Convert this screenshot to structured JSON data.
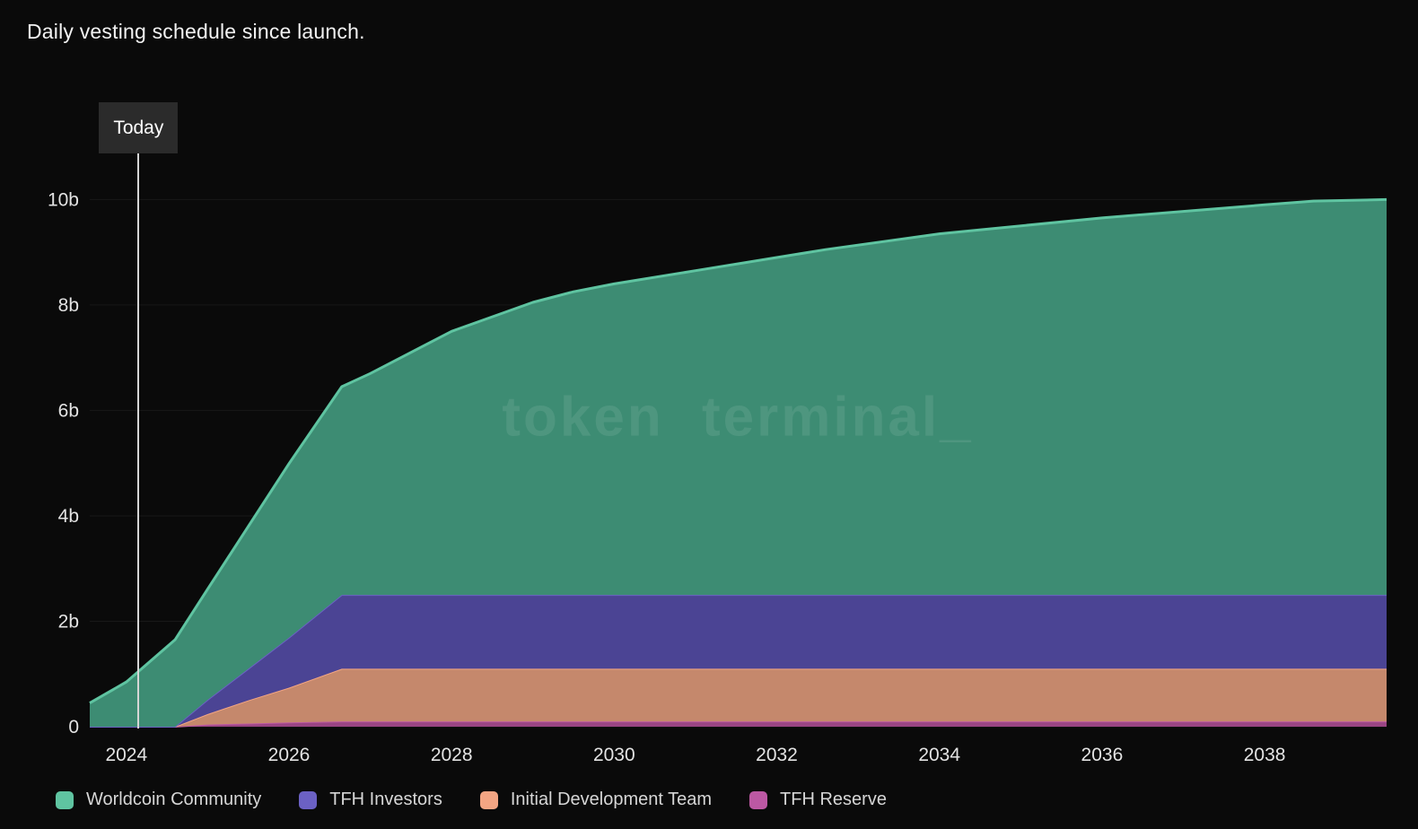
{
  "page": {
    "title": "Daily vesting schedule since launch."
  },
  "chart_data": {
    "type": "area",
    "stacked": true,
    "title": "Daily vesting schedule since launch.",
    "watermark": "token terminal_",
    "xlabel": "",
    "ylabel": "",
    "grid": "horizontal-faint",
    "legend_position": "bottom",
    "xlim": [
      2023.55,
      2039.5
    ],
    "ylim": [
      0,
      10.5
    ],
    "x_ticks": [
      2024,
      2026,
      2028,
      2030,
      2032,
      2034,
      2036,
      2038
    ],
    "y_ticks": [
      {
        "label": "0",
        "value": 0
      },
      {
        "label": "2b",
        "value": 2
      },
      {
        "label": "4b",
        "value": 4
      },
      {
        "label": "6b",
        "value": 6
      },
      {
        "label": "8b",
        "value": 8
      },
      {
        "label": "10b",
        "value": 10
      }
    ],
    "today": {
      "label": "Today",
      "x": 2024.15
    },
    "x": [
      2023.55,
      2024,
      2024.6,
      2025,
      2025.5,
      2026,
      2026.65,
      2027,
      2028,
      2029,
      2029.5,
      2030,
      2031,
      2032,
      2032.6,
      2034,
      2036,
      2038,
      2038.6,
      2039.5
    ],
    "series": [
      {
        "name": "TFH Reserve",
        "color": "#bc58a3",
        "fill": "#9a4583",
        "values": [
          0,
          0,
          0,
          0.04,
          0.06,
          0.08,
          0.1,
          0.1,
          0.1,
          0.1,
          0.1,
          0.1,
          0.1,
          0.1,
          0.1,
          0.1,
          0.1,
          0.1,
          0.1,
          0.1
        ]
      },
      {
        "name": "Initial Development Team",
        "color": "#f3a583",
        "fill": "#c5886c",
        "values": [
          0,
          0,
          0,
          0.2,
          0.44,
          0.66,
          1.0,
          1.0,
          1.0,
          1.0,
          1.0,
          1.0,
          1.0,
          1.0,
          1.0,
          1.0,
          1.0,
          1.0,
          1.0,
          1.0
        ]
      },
      {
        "name": "TFH Investors",
        "color": "#6b61c4",
        "fill": "#4b4494",
        "values": [
          0,
          0,
          0,
          0.27,
          0.6,
          0.95,
          1.4,
          1.4,
          1.4,
          1.4,
          1.4,
          1.4,
          1.4,
          1.4,
          1.4,
          1.4,
          1.4,
          1.4,
          1.4,
          1.4
        ]
      },
      {
        "name": "Worldcoin Community",
        "color": "#5fc4a1",
        "fill": "#3d8c73",
        "values": [
          0.45,
          0.85,
          1.65,
          2.1,
          2.7,
          3.3,
          3.95,
          4.2,
          5.0,
          5.55,
          5.75,
          5.9,
          6.15,
          6.4,
          6.55,
          6.85,
          7.15,
          7.4,
          7.47,
          7.5
        ]
      }
    ]
  }
}
